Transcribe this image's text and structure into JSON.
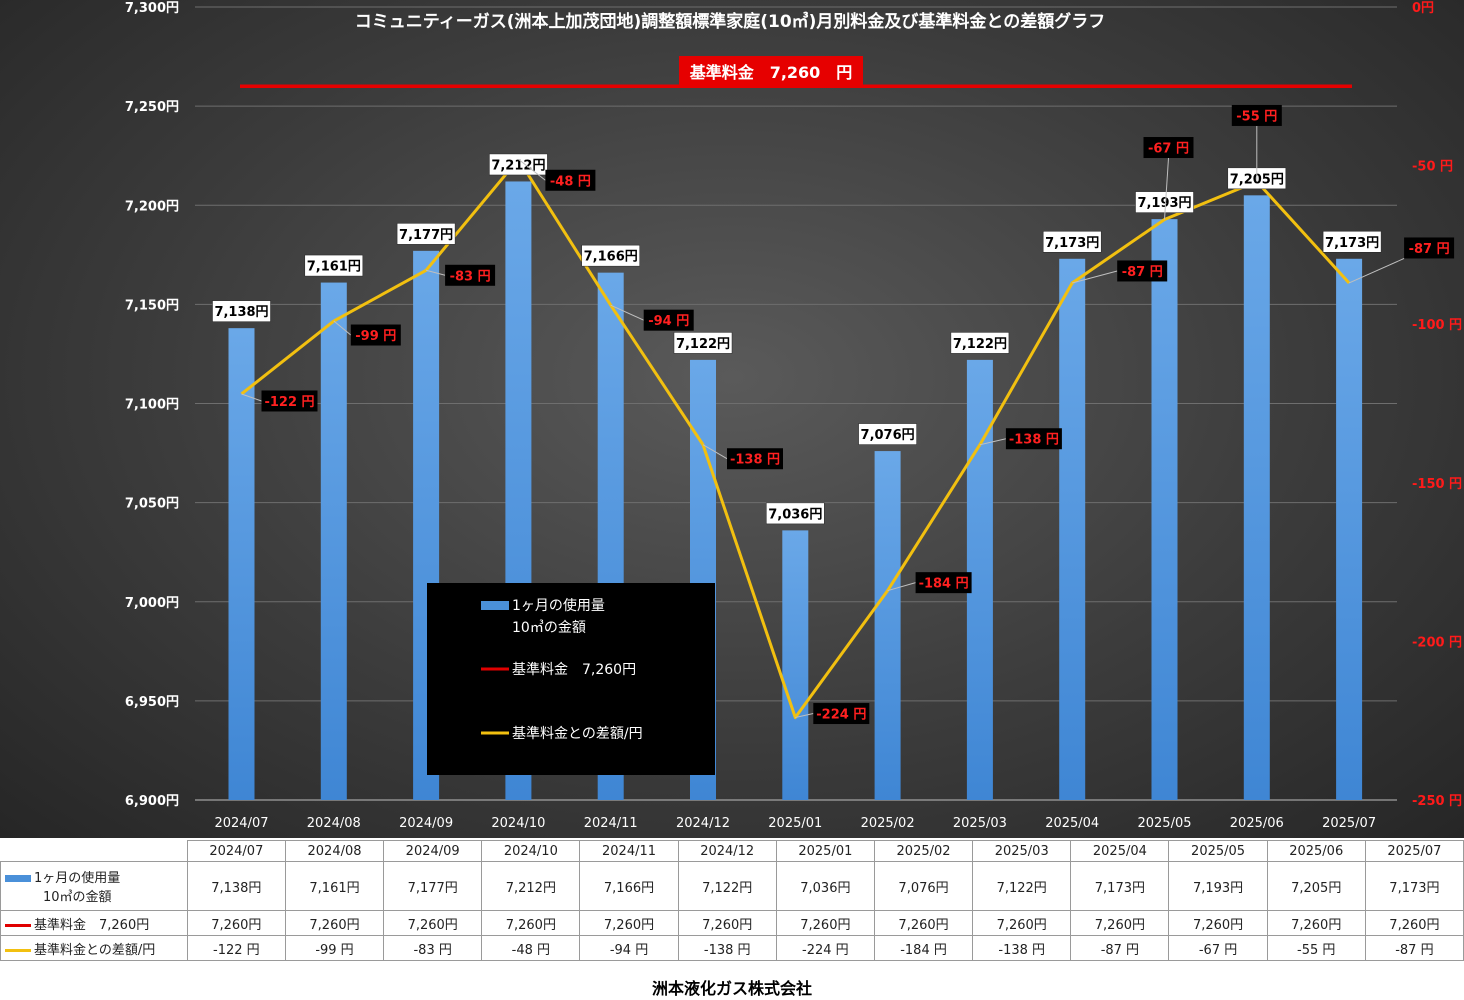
{
  "chart_data": {
    "type": "bar",
    "title": "コミュニティーガス(洲本上加茂団地)調整額標準家庭(10㎥)月別料金及び基準料金との差額グラフ",
    "categories": [
      "2024/07",
      "2024/08",
      "2024/09",
      "2024/10",
      "2024/11",
      "2024/12",
      "2025/01",
      "2025/02",
      "2025/03",
      "2025/04",
      "2025/05",
      "2025/06",
      "2025/07"
    ],
    "series": [
      {
        "name": "1ヶ月の使用量\n10㎥の金額",
        "axis": "left",
        "type": "bar",
        "color": "#4a90d9",
        "values": [
          7138,
          7161,
          7177,
          7212,
          7166,
          7122,
          7036,
          7076,
          7122,
          7173,
          7193,
          7205,
          7173
        ],
        "labels": [
          "7,138円",
          "7,161円",
          "7,177円",
          "7,212円",
          "7,166円",
          "7,122円",
          "7,036円",
          "7,076円",
          "7,122円",
          "7,173円",
          "7,193円",
          "7,205円",
          "7,173円"
        ]
      },
      {
        "name": "基準料金　7,260円",
        "axis": "left",
        "type": "line",
        "color": "#e00000",
        "values": [
          7260,
          7260,
          7260,
          7260,
          7260,
          7260,
          7260,
          7260,
          7260,
          7260,
          7260,
          7260,
          7260
        ],
        "labels": [
          "7,260円",
          "7,260円",
          "7,260円",
          "7,260円",
          "7,260円",
          "7,260円",
          "7,260円",
          "7,260円",
          "7,260円",
          "7,260円",
          "7,260円",
          "7,260円",
          "7,260円"
        ]
      },
      {
        "name": "基準料金との差額/円",
        "axis": "right",
        "type": "line",
        "color": "#f2c010",
        "values": [
          -122,
          -99,
          -83,
          -48,
          -94,
          -138,
          -224,
          -184,
          -138,
          -87,
          -67,
          -55,
          -87
        ],
        "labels": [
          "-122 円",
          "-99 円",
          "-83 円",
          "-48 円",
          "-94 円",
          "-138 円",
          "-224 円",
          "-184 円",
          "-138 円",
          "-87 円",
          "-67 円",
          "-55 円",
          "-87 円"
        ]
      }
    ],
    "ylim_left": [
      6900,
      7300
    ],
    "ylim_right": [
      -250,
      0
    ],
    "yticks_left": [
      "6,900円",
      "6,950円",
      "7,000円",
      "7,050円",
      "7,100円",
      "7,150円",
      "7,200円",
      "7,250円",
      "7,300円"
    ],
    "yticks_right": [
      "-250 円",
      "-200 円",
      "-150 円",
      "-100 円",
      "-50 円",
      "0円"
    ],
    "standard_label": "基準料金　7,260　円",
    "grid": "horizontal",
    "legend_position": "inside-center"
  },
  "table": {
    "row_labels": [
      "1ヶ月の使用量",
      "10㎥の金額",
      "基準料金　7,260円",
      "基準料金との差額/円"
    ]
  },
  "colors": {
    "bar": "#4a90d9",
    "standard": "#e00000",
    "diff": "#f2c010",
    "background": "#3c3c3c"
  },
  "footer": "洲本液化ガス株式会社"
}
